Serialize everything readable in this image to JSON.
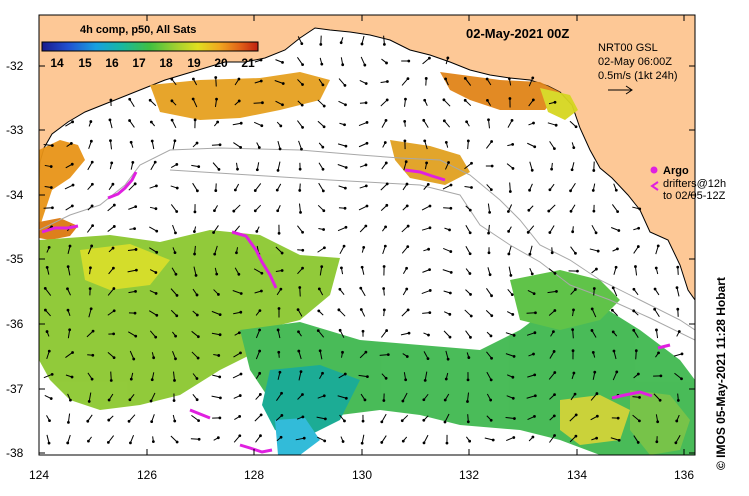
{
  "title": "02-May-2021 00Z",
  "legend": {
    "title": "4h comp, p50, All Sats",
    "ticks": [
      "14",
      "15",
      "16",
      "17",
      "18",
      "19",
      "20",
      "21"
    ]
  },
  "current": {
    "model": "NRT00 GSL",
    "time": "02-May 06:00Z",
    "scale": "0.5m/s (1kt 24h)"
  },
  "argo": {
    "label": "Argo",
    "drifter_line1": "drifters@12h",
    "drifter_line2": "to 02/05-12Z",
    "marker_color": "#e020e0"
  },
  "credit": "© IMOS 05-May-2021 11:28 Hobart",
  "axes": {
    "lat_labels": [
      "-32",
      "-33",
      "-34",
      "-35",
      "-36",
      "-37",
      "-38"
    ],
    "lon_labels": [
      "124",
      "126",
      "128",
      "130",
      "132",
      "134",
      "136"
    ]
  },
  "colors": {
    "land": "#fdc896",
    "ocean": "#ffffff"
  }
}
